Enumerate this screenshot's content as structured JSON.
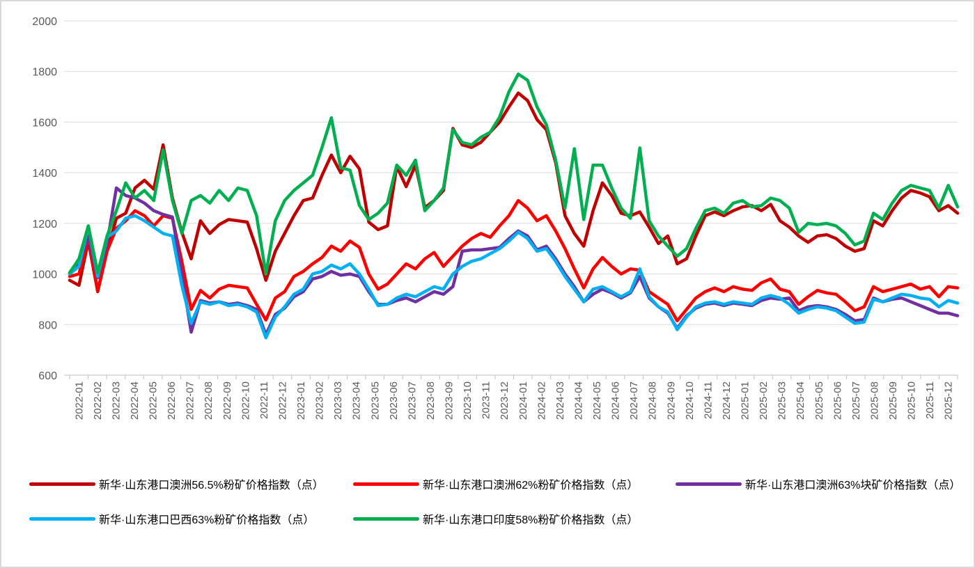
{
  "chart_data": {
    "type": "line",
    "title": "",
    "xlabel": "",
    "ylabel": "",
    "ylim": [
      600,
      2000
    ],
    "y_ticks": [
      600,
      800,
      1000,
      1200,
      1400,
      1600,
      1800,
      2000
    ],
    "grid": "horizontal",
    "legend_position": "bottom",
    "samples_per_month": 2,
    "categories": [
      "2022-01",
      "2022-02",
      "2022-03",
      "2022-04",
      "2022-05",
      "2022-06",
      "2022-07",
      "2022-08",
      "2022-09",
      "2022-10",
      "2022-11",
      "2022-12",
      "2023-01",
      "2023-02",
      "2023-03",
      "2023-04",
      "2023-05",
      "2023-06",
      "2023-07",
      "2023-08",
      "2023-09",
      "2023-10",
      "2023-11",
      "2023-12",
      "2024-01",
      "2024-02",
      "2024-03",
      "2024-04",
      "2024-05",
      "2024-06",
      "2024-07",
      "2024-08",
      "2024-09",
      "2024-10",
      "2024-11",
      "2024-12",
      "2025-01",
      "2025-02",
      "2025-03",
      "2025-04",
      "2025-05",
      "2025-06",
      "2025-07",
      "2025-08",
      "2025-09",
      "2025-10",
      "2025-11",
      "2025-12"
    ],
    "colors": {
      "axis_label": "#595959",
      "gridline": "#d9d9d9",
      "axis_line": "#bfbfbf",
      "background": "#ffffff",
      "border": "#d9d9d9"
    },
    "series": [
      {
        "name": "新华·山东港口澳洲56.5%粉矿价格指数（点）",
        "color": "#C00000",
        "values": [
          975,
          955,
          1130,
          930,
          1090,
          1220,
          1240,
          1340,
          1370,
          1335,
          1510,
          1300,
          1165,
          1060,
          1210,
          1160,
          1195,
          1215,
          1210,
          1205,
          1100,
          975,
          1090,
          1160,
          1230,
          1290,
          1300,
          1390,
          1470,
          1400,
          1465,
          1415,
          1205,
          1175,
          1190,
          1425,
          1345,
          1430,
          1262,
          1290,
          1330,
          1575,
          1510,
          1500,
          1520,
          1560,
          1600,
          1660,
          1715,
          1685,
          1610,
          1570,
          1440,
          1230,
          1160,
          1110,
          1250,
          1360,
          1310,
          1240,
          1230,
          1245,
          1185,
          1120,
          1150,
          1040,
          1060,
          1150,
          1230,
          1245,
          1230,
          1250,
          1265,
          1270,
          1250,
          1275,
          1210,
          1185,
          1150,
          1125,
          1150,
          1155,
          1140,
          1110,
          1090,
          1100,
          1210,
          1190,
          1250,
          1300,
          1330,
          1320,
          1305,
          1250,
          1270,
          1240
        ]
      },
      {
        "name": "新华·山东港口澳洲62%粉矿价格指数（点）",
        "color": "#FF0000",
        "values": [
          990,
          1000,
          1145,
          935,
          1090,
          1180,
          1210,
          1250,
          1230,
          1190,
          1230,
          1220,
          1050,
          860,
          935,
          905,
          940,
          955,
          950,
          945,
          880,
          818,
          905,
          930,
          990,
          1010,
          1040,
          1065,
          1110,
          1090,
          1130,
          1105,
          1000,
          940,
          960,
          1000,
          1040,
          1020,
          1060,
          1085,
          1030,
          1070,
          1110,
          1140,
          1160,
          1145,
          1190,
          1230,
          1290,
          1260,
          1210,
          1230,
          1170,
          1100,
          1020,
          945,
          1020,
          1065,
          1030,
          1000,
          1020,
          1015,
          930,
          905,
          880,
          815,
          860,
          905,
          930,
          945,
          930,
          950,
          940,
          935,
          965,
          980,
          940,
          930,
          880,
          910,
          935,
          925,
          920,
          890,
          855,
          870,
          950,
          930,
          940,
          950,
          960,
          940,
          950,
          910,
          950,
          945
        ]
      },
      {
        "name": "新华·山东港口澳洲63%块矿价格指数（点）",
        "color": "#7030A0",
        "values": [
          1005,
          1040,
          1150,
          985,
          1120,
          1340,
          1310,
          1300,
          1280,
          1250,
          1235,
          1225,
          1000,
          770,
          895,
          885,
          890,
          880,
          885,
          875,
          860,
          760,
          840,
          865,
          910,
          930,
          980,
          990,
          1010,
          995,
          1000,
          990,
          930,
          880,
          880,
          895,
          905,
          890,
          910,
          930,
          920,
          950,
          1090,
          1095,
          1095,
          1100,
          1105,
          1140,
          1170,
          1150,
          1095,
          1110,
          1060,
          1000,
          950,
          890,
          920,
          940,
          925,
          905,
          925,
          990,
          905,
          870,
          845,
          785,
          835,
          865,
          880,
          885,
          875,
          885,
          880,
          875,
          895,
          905,
          900,
          905,
          855,
          870,
          875,
          870,
          860,
          840,
          815,
          820,
          905,
          890,
          900,
          905,
          890,
          875,
          860,
          845,
          845,
          835
        ]
      },
      {
        "name": "新华·山东港口巴西63%粉矿价格指数（点）",
        "color": "#00B0F0",
        "values": [
          1000,
          1030,
          1190,
          990,
          1145,
          1170,
          1220,
          1230,
          1210,
          1185,
          1160,
          1150,
          955,
          805,
          890,
          880,
          890,
          875,
          880,
          870,
          850,
          748,
          830,
          870,
          920,
          940,
          1000,
          1010,
          1035,
          1020,
          1040,
          1000,
          940,
          875,
          880,
          905,
          920,
          910,
          930,
          950,
          940,
          1000,
          1030,
          1050,
          1060,
          1080,
          1100,
          1130,
          1165,
          1140,
          1090,
          1100,
          1050,
          990,
          940,
          890,
          940,
          950,
          930,
          910,
          930,
          1020,
          910,
          870,
          850,
          780,
          830,
          870,
          885,
          890,
          880,
          890,
          885,
          880,
          905,
          915,
          905,
          880,
          845,
          860,
          870,
          865,
          855,
          830,
          805,
          810,
          900,
          890,
          905,
          920,
          915,
          905,
          900,
          870,
          895,
          885
        ]
      },
      {
        "name": "新华·山东港口印度58%粉矿价格指数（点）",
        "color": "#00B050",
        "values": [
          1005,
          1060,
          1190,
          1005,
          1150,
          1250,
          1360,
          1300,
          1330,
          1290,
          1490,
          1290,
          1160,
          1290,
          1310,
          1280,
          1330,
          1290,
          1340,
          1330,
          1230,
          1000,
          1210,
          1290,
          1330,
          1360,
          1390,
          1500,
          1617,
          1420,
          1410,
          1270,
          1215,
          1240,
          1280,
          1430,
          1390,
          1450,
          1250,
          1290,
          1340,
          1570,
          1520,
          1510,
          1540,
          1560,
          1620,
          1720,
          1790,
          1765,
          1660,
          1590,
          1450,
          1260,
          1495,
          1215,
          1430,
          1430,
          1340,
          1260,
          1220,
          1498,
          1210,
          1150,
          1110,
          1070,
          1100,
          1180,
          1250,
          1260,
          1240,
          1280,
          1290,
          1265,
          1270,
          1300,
          1290,
          1260,
          1165,
          1200,
          1195,
          1200,
          1190,
          1160,
          1115,
          1130,
          1240,
          1215,
          1280,
          1330,
          1350,
          1340,
          1330,
          1260,
          1350,
          1265
        ]
      }
    ]
  },
  "legend": {
    "rows": [
      {
        "items": [
          0,
          1,
          2
        ]
      },
      {
        "items": [
          3,
          4
        ]
      }
    ]
  }
}
